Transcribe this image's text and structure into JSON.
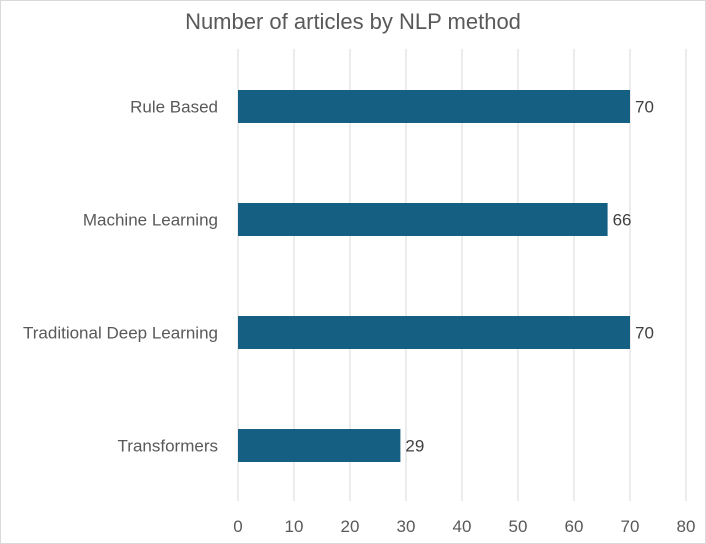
{
  "chart_data": {
    "type": "bar",
    "orientation": "horizontal",
    "title": "Number of articles by NLP method",
    "categories": [
      "Rule Based",
      "Machine Learning",
      "Traditional Deep Learning",
      "Transformers"
    ],
    "values": [
      70,
      66,
      70,
      29
    ],
    "data_labels": [
      "70",
      "66",
      "70",
      "29"
    ],
    "xlim": [
      0,
      80
    ],
    "x_ticks": [
      0,
      10,
      20,
      30,
      40,
      50,
      60,
      70,
      80
    ],
    "x_tick_labels": [
      "0",
      "10",
      "20",
      "30",
      "40",
      "50",
      "60",
      "70",
      "80"
    ],
    "xlabel": "",
    "ylabel": "",
    "grid": "vertical major gridlines",
    "legend": "none",
    "colors": {
      "bar": "#156082",
      "grid": "#d9d9d9",
      "text": "#595959",
      "data_label": "#404040"
    }
  }
}
